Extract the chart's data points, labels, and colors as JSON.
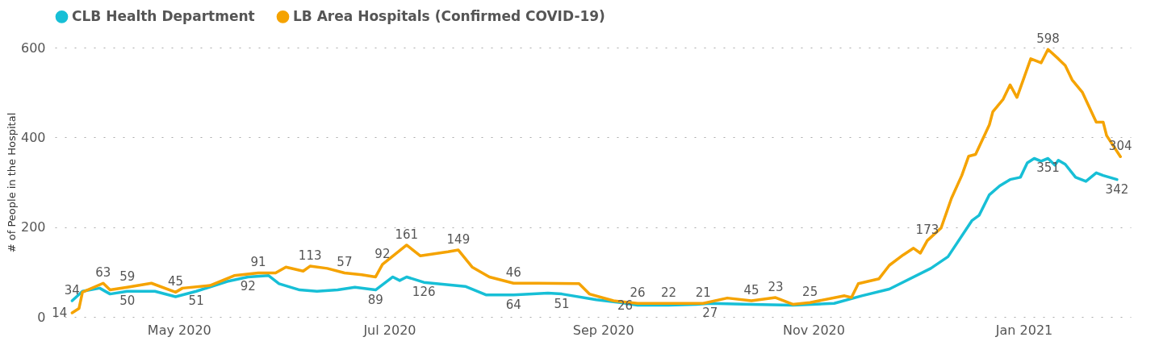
{
  "chart_data": {
    "type": "line",
    "ylabel": "# of People in the Hospital",
    "legend": "top left",
    "grid": "y",
    "line_style": "solid",
    "marker": "none",
    "xlim": [
      "2020-03-26",
      "2021-02-01"
    ],
    "xticks": [
      {
        "value": "2020-05-01",
        "label": "May 2020"
      },
      {
        "value": "2020-07-01",
        "label": "Jul 2020"
      },
      {
        "value": "2020-09-01",
        "label": "Sep 2020"
      },
      {
        "value": "2020-11-01",
        "label": "Nov 2020"
      },
      {
        "value": "2021-01-01",
        "label": "Jan 2021"
      }
    ],
    "ylim": [
      0,
      600
    ],
    "yticks": [
      0,
      200,
      400,
      600
    ],
    "series": [
      {
        "name": "CLB Health Department",
        "color": "#17bfd6",
        "x": [
          "2020-03-31",
          "2020-04-03",
          "2020-04-08",
          "2020-04-11",
          "2020-04-16",
          "2020-04-24",
          "2020-04-30",
          "2020-05-06",
          "2020-05-15",
          "2020-05-21",
          "2020-05-27",
          "2020-05-30",
          "2020-06-05",
          "2020-06-10",
          "2020-06-16",
          "2020-06-21",
          "2020-06-27",
          "2020-07-02",
          "2020-07-04",
          "2020-07-06",
          "2020-07-11",
          "2020-07-23",
          "2020-07-29",
          "2020-08-06",
          "2020-08-16",
          "2020-08-20",
          "2020-08-30",
          "2020-09-06",
          "2020-09-11",
          "2020-09-20",
          "2020-09-28",
          "2020-10-02",
          "2020-10-14",
          "2020-10-26",
          "2020-11-07",
          "2020-11-15",
          "2020-11-23",
          "2020-12-05",
          "2020-12-10",
          "2020-12-17",
          "2020-12-19",
          "2020-12-22",
          "2020-12-25",
          "2020-12-28",
          "2020-12-31",
          "2021-01-02",
          "2021-01-04",
          "2021-01-06",
          "2021-01-08",
          "2021-01-10",
          "2021-01-11",
          "2021-01-13",
          "2021-01-16",
          "2021-01-19",
          "2021-01-22",
          "2021-01-24",
          "2021-01-28"
        ],
        "values": [
          36,
          57,
          64,
          51,
          57,
          57,
          45,
          57,
          79,
          89,
          92,
          74,
          60,
          57,
          60,
          66,
          60,
          89,
          81,
          89,
          77,
          68,
          49,
          49,
          53,
          51,
          38,
          32,
          26,
          26,
          28,
          30,
          28,
          26,
          30,
          47,
          62,
          108,
          134,
          215,
          226,
          272,
          292,
          306,
          311,
          343,
          353,
          347,
          353,
          338,
          349,
          340,
          311,
          302,
          321,
          315,
          306
        ]
      },
      {
        "name": "LB Area Hospitals (Confirmed COVID-19)",
        "color": "#f5a300",
        "x": [
          "2020-03-31",
          "2020-04-02",
          "2020-04-03",
          "2020-04-09",
          "2020-04-11",
          "2020-04-16",
          "2020-04-23",
          "2020-04-30",
          "2020-05-02",
          "2020-05-10",
          "2020-05-17",
          "2020-05-24",
          "2020-05-29",
          "2020-06-01",
          "2020-06-06",
          "2020-06-08",
          "2020-06-13",
          "2020-06-18",
          "2020-06-23",
          "2020-06-27",
          "2020-06-29",
          "2020-07-06",
          "2020-07-10",
          "2020-07-18",
          "2020-07-21",
          "2020-07-25",
          "2020-07-30",
          "2020-08-06",
          "2020-08-13",
          "2020-08-25",
          "2020-08-28",
          "2020-09-04",
          "2020-09-11",
          "2020-09-20",
          "2020-09-30",
          "2020-10-07",
          "2020-10-14",
          "2020-10-21",
          "2020-10-26",
          "2020-10-31",
          "2020-11-10",
          "2020-11-12",
          "2020-11-14",
          "2020-11-20",
          "2020-11-23",
          "2020-11-27",
          "2020-11-30",
          "2020-12-02",
          "2020-12-04",
          "2020-12-08",
          "2020-12-11",
          "2020-12-14",
          "2020-12-16",
          "2020-12-18",
          "2020-12-22",
          "2020-12-23",
          "2020-12-26",
          "2020-12-28",
          "2020-12-30",
          "2021-01-03",
          "2021-01-06",
          "2021-01-08",
          "2021-01-11",
          "2021-01-13",
          "2021-01-15",
          "2021-01-18",
          "2021-01-22",
          "2021-01-24",
          "2021-01-25",
          "2021-01-29"
        ],
        "values": [
          9,
          19,
          55,
          75,
          60,
          66,
          75,
          55,
          64,
          70,
          92,
          98,
          98,
          111,
          102,
          113,
          108,
          98,
          94,
          89,
          117,
          160,
          136,
          145,
          149,
          111,
          89,
          75,
          75,
          74,
          51,
          36,
          30,
          30,
          30,
          42,
          36,
          43,
          28,
          32,
          47,
          43,
          74,
          85,
          115,
          138,
          153,
          142,
          170,
          198,
          264,
          315,
          358,
          362,
          428,
          457,
          485,
          517,
          489,
          575,
          566,
          596,
          575,
          560,
          528,
          500,
          434,
          434,
          404,
          357
        ]
      }
    ],
    "annotations": [
      {
        "text": "34",
        "x": "2020-03-31",
        "y": 36
      },
      {
        "text": "14",
        "x": "2020-03-31",
        "y": 9
      },
      {
        "text": "63",
        "x": "2020-04-09",
        "y": 75
      },
      {
        "text": "59",
        "x": "2020-04-16",
        "y": 66
      },
      {
        "text": "50",
        "x": "2020-04-16",
        "y": 57
      },
      {
        "text": "45",
        "x": "2020-04-30",
        "y": 55
      },
      {
        "text": "51",
        "x": "2020-05-06",
        "y": 57
      },
      {
        "text": "91",
        "x": "2020-05-24",
        "y": 98
      },
      {
        "text": "92",
        "x": "2020-05-21",
        "y": 89
      },
      {
        "text": "113",
        "x": "2020-06-08",
        "y": 113
      },
      {
        "text": "57",
        "x": "2020-06-18",
        "y": 98
      },
      {
        "text": "92",
        "x": "2020-06-29",
        "y": 117
      },
      {
        "text": "89",
        "x": "2020-06-27",
        "y": 60
      },
      {
        "text": "161",
        "x": "2020-07-06",
        "y": 160
      },
      {
        "text": "126",
        "x": "2020-07-11",
        "y": 77
      },
      {
        "text": "149",
        "x": "2020-07-21",
        "y": 149
      },
      {
        "text": "46",
        "x": "2020-08-06",
        "y": 75
      },
      {
        "text": "64",
        "x": "2020-08-06",
        "y": 49
      },
      {
        "text": "51",
        "x": "2020-08-20",
        "y": 51
      },
      {
        "text": "26",
        "x": "2020-09-11",
        "y": 30
      },
      {
        "text": "26",
        "x": "2020-09-11",
        "y": 26
      },
      {
        "text": "22",
        "x": "2020-09-20",
        "y": 30
      },
      {
        "text": "21",
        "x": "2020-09-30",
        "y": 30
      },
      {
        "text": "27",
        "x": "2020-10-02",
        "y": 30
      },
      {
        "text": "45",
        "x": "2020-10-14",
        "y": 36
      },
      {
        "text": "23",
        "x": "2020-10-21",
        "y": 43
      },
      {
        "text": "25",
        "x": "2020-10-31",
        "y": 32
      },
      {
        "text": "173",
        "x": "2020-12-04",
        "y": 170
      },
      {
        "text": "351",
        "x": "2021-01-08",
        "y": 353
      },
      {
        "text": "598",
        "x": "2021-01-08",
        "y": 596
      },
      {
        "text": "304",
        "x": "2021-01-29",
        "y": 357
      },
      {
        "text": "342",
        "x": "2021-01-28",
        "y": 306
      }
    ]
  }
}
